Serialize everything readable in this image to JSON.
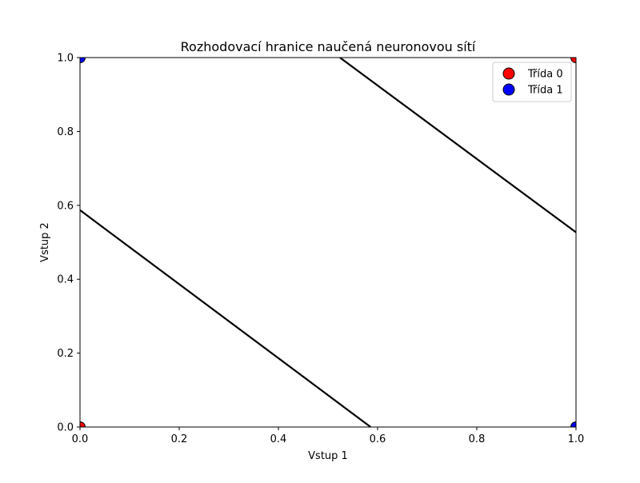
{
  "chart_data": {
    "type": "scatter",
    "title": "Rozhodovací hranice naučená neuronovou sítí",
    "xlabel": "Vstup 1",
    "ylabel": "Vstup 2",
    "xlim": [
      0.0,
      1.0
    ],
    "ylim": [
      0.0,
      1.0
    ],
    "x_ticks": [
      "0.0",
      "0.2",
      "0.4",
      "0.6",
      "0.8",
      "1.0"
    ],
    "y_ticks": [
      "0.0",
      "0.2",
      "0.4",
      "0.6",
      "0.8",
      "1.0"
    ],
    "x_tick_values": [
      0.0,
      0.2,
      0.4,
      0.6,
      0.8,
      1.0
    ],
    "y_tick_values": [
      0.0,
      0.2,
      0.4,
      0.6,
      0.8,
      1.0
    ],
    "grid": false,
    "legend_position": "top-right",
    "series": [
      {
        "name": "Třída 0",
        "color": "#ff0000",
        "points": [
          {
            "x": 0.0,
            "y": 0.0
          },
          {
            "x": 1.0,
            "y": 1.0
          }
        ]
      },
      {
        "name": "Třída 1",
        "color": "#0000ff",
        "points": [
          {
            "x": 0.0,
            "y": 1.0
          },
          {
            "x": 1.0,
            "y": 0.0
          }
        ]
      }
    ],
    "boundary_lines": [
      {
        "points": [
          {
            "x": 0.0,
            "y": 0.587
          },
          {
            "x": 0.586,
            "y": 0.0
          }
        ],
        "color": "#000000"
      },
      {
        "points": [
          {
            "x": 0.524,
            "y": 1.0
          },
          {
            "x": 1.0,
            "y": 0.527
          }
        ],
        "color": "#000000"
      }
    ]
  }
}
